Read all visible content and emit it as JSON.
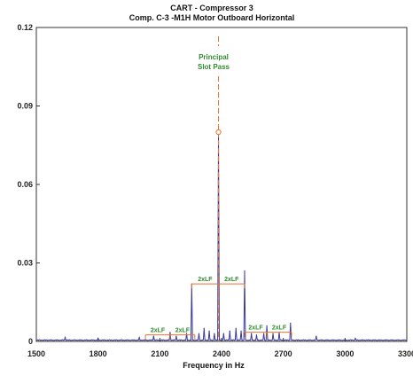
{
  "chart_data": {
    "type": "line",
    "title": "CART - Compressor 3",
    "subtitle": "Comp. C-3 -M1H   Motor Outboard Horizontal",
    "xlabel": "Frequency in Hz",
    "ylabel": "",
    "xlim": [
      1500,
      3300
    ],
    "ylim": [
      0,
      0.12
    ],
    "x_ticks": [
      "1500",
      "1800",
      "2100",
      "2400",
      "2700",
      "3000",
      "3300"
    ],
    "y_ticks": [
      "0",
      "0.03",
      "0.06",
      "0.09",
      "0.12"
    ],
    "grid": false,
    "series": [
      {
        "color": "#3a3a9a",
        "peaks": [
          {
            "x": 1640,
            "y": 0.0015
          },
          {
            "x": 1800,
            "y": 0.0012
          },
          {
            "x": 2000,
            "y": 0.0015
          },
          {
            "x": 2070,
            "y": 0.002
          },
          {
            "x": 2150,
            "y": 0.0035
          },
          {
            "x": 2180,
            "y": 0.002
          },
          {
            "x": 2230,
            "y": 0.003
          },
          {
            "x": 2255,
            "y": 0.022
          },
          {
            "x": 2290,
            "y": 0.003
          },
          {
            "x": 2315,
            "y": 0.005
          },
          {
            "x": 2340,
            "y": 0.004
          },
          {
            "x": 2365,
            "y": 0.003
          },
          {
            "x": 2385,
            "y": 0.08
          },
          {
            "x": 2410,
            "y": 0.003
          },
          {
            "x": 2440,
            "y": 0.004
          },
          {
            "x": 2470,
            "y": 0.005
          },
          {
            "x": 2495,
            "y": 0.004
          },
          {
            "x": 2512,
            "y": 0.027
          },
          {
            "x": 2545,
            "y": 0.003
          },
          {
            "x": 2570,
            "y": 0.0025
          },
          {
            "x": 2605,
            "y": 0.003
          },
          {
            "x": 2620,
            "y": 0.006
          },
          {
            "x": 2650,
            "y": 0.003
          },
          {
            "x": 2680,
            "y": 0.0035
          },
          {
            "x": 2735,
            "y": 0.007
          },
          {
            "x": 2860,
            "y": 0.002
          },
          {
            "x": 3050,
            "y": 0.0012
          }
        ]
      }
    ],
    "annotations": {
      "principal_label": [
        "Principal",
        "Slot Pass"
      ],
      "principal_line_x": 2385,
      "principal_marker_y": 0.08,
      "lf_label": "2xLF",
      "lf_brackets": [
        {
          "x1": 2030,
          "x2": 2150,
          "y": 0.0025
        },
        {
          "x1": 2150,
          "x2": 2270,
          "y": 0.0025
        },
        {
          "x1": 2255,
          "x2": 2385,
          "y": 0.022
        },
        {
          "x1": 2385,
          "x2": 2512,
          "y": 0.022
        },
        {
          "x1": 2512,
          "x2": 2620,
          "y": 0.0035
        },
        {
          "x1": 2620,
          "x2": 2740,
          "y": 0.0035
        }
      ]
    },
    "colors": {
      "trace": "#3a3a9a",
      "annotation_line": "#e8732a",
      "annotation_text": "#2e8b2e",
      "axis": "#333333"
    }
  }
}
